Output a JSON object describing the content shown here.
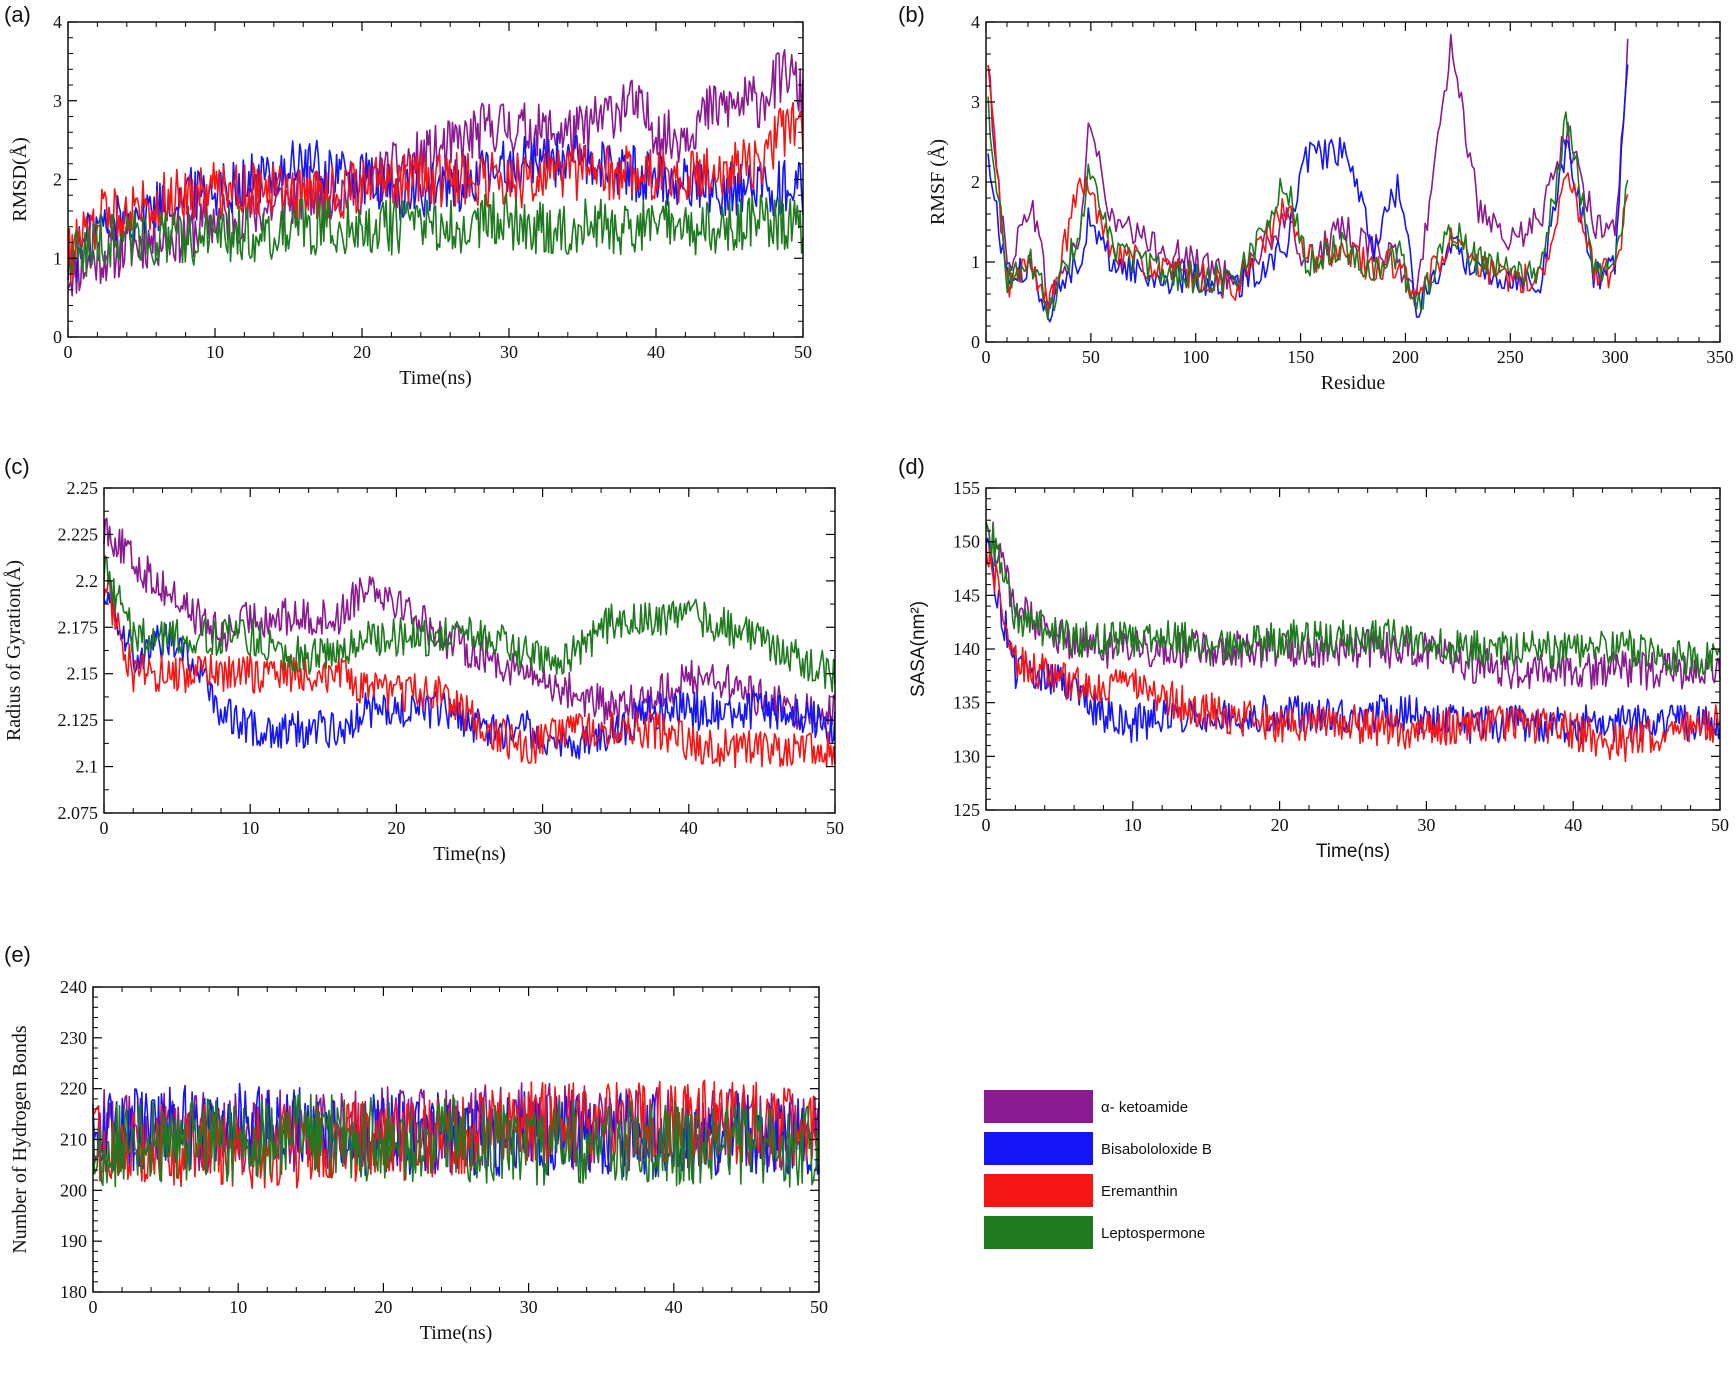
{
  "series_colors": {
    "alpha_ketoamide": "#8a1a8f",
    "bisabololoxide_b": "#1515f5",
    "eremanthin": "#f51515",
    "leptospermone": "#1f7a1f"
  },
  "legend": [
    {
      "name": "α- ketoamide",
      "color": "#8a1a8f"
    },
    {
      "name": "Bisabololoxide B",
      "color": "#1515f5"
    },
    {
      "name": "Eremanthin",
      "color": "#f51515"
    },
    {
      "name": "Leptospermone",
      "color": "#1f7a1f"
    }
  ],
  "chart_data": [
    {
      "panel": "(a)",
      "type": "line",
      "xlabel": "Time(ns)",
      "ylabel": "RMSD(Å)",
      "xlim": [
        0,
        50
      ],
      "ylim": [
        0,
        4
      ],
      "xticks": [
        0,
        10,
        20,
        30,
        40,
        50
      ],
      "yticks": [
        0,
        1,
        2,
        3,
        4
      ],
      "x": [
        0,
        2,
        5,
        8,
        10,
        13,
        16,
        20,
        23,
        26,
        29,
        32,
        35,
        38,
        41,
        44,
        47,
        49,
        50
      ],
      "series": [
        {
          "name": "α- ketoamide",
          "values": [
            0.8,
            1.0,
            1.2,
            1.3,
            1.5,
            1.6,
            1.8,
            1.9,
            2.2,
            2.4,
            2.7,
            2.6,
            2.6,
            3.0,
            2.5,
            2.9,
            3.0,
            3.4,
            3.0
          ]
        },
        {
          "name": "Bisabololoxide B",
          "values": [
            0.9,
            1.4,
            1.6,
            1.8,
            1.9,
            2.0,
            2.2,
            2.0,
            1.8,
            1.9,
            2.1,
            2.3,
            2.2,
            2.1,
            2.0,
            1.9,
            1.9,
            1.9,
            1.9
          ]
        },
        {
          "name": "Eremanthin",
          "values": [
            1.0,
            1.5,
            1.7,
            1.8,
            1.9,
            1.9,
            1.8,
            1.9,
            2.0,
            2.0,
            2.0,
            2.0,
            2.1,
            2.1,
            2.0,
            2.1,
            2.2,
            2.7,
            2.6
          ]
        },
        {
          "name": "Leptospermone",
          "values": [
            1.0,
            1.2,
            1.3,
            1.2,
            1.3,
            1.3,
            1.4,
            1.4,
            1.4,
            1.4,
            1.5,
            1.4,
            1.4,
            1.4,
            1.4,
            1.4,
            1.5,
            1.4,
            1.4
          ]
        }
      ]
    },
    {
      "panel": "(b)",
      "type": "line",
      "xlabel": "Residue",
      "ylabel": "RMSF (Å)",
      "xlim": [
        0,
        350
      ],
      "ylim": [
        0,
        4
      ],
      "xticks": [
        0,
        50,
        100,
        150,
        200,
        250,
        300,
        350
      ],
      "yticks": [
        0,
        1,
        2,
        3,
        4
      ],
      "x": [
        1,
        10,
        22,
        30,
        45,
        49,
        60,
        80,
        100,
        120,
        143,
        153,
        170,
        185,
        197,
        205,
        222,
        235,
        250,
        265,
        277,
        290,
        300,
        306
      ],
      "series": [
        {
          "name": "α- ketoamide",
          "values": [
            3.4,
            0.9,
            1.8,
            0.5,
            1.3,
            2.8,
            1.5,
            1.2,
            1.0,
            0.8,
            1.5,
            1.0,
            1.4,
            1.2,
            1.0,
            0.5,
            3.8,
            1.6,
            1.2,
            1.6,
            2.6,
            1.5,
            1.4,
            3.6
          ]
        },
        {
          "name": "Bisabololoxide B",
          "values": [
            2.3,
            0.8,
            0.9,
            0.4,
            1.1,
            1.5,
            1.0,
            0.8,
            0.8,
            0.7,
            1.2,
            2.3,
            2.4,
            1.2,
            2.0,
            0.4,
            1.2,
            0.9,
            0.8,
            0.8,
            2.5,
            0.8,
            1.0,
            3.6
          ]
        },
        {
          "name": "Eremanthin",
          "values": [
            3.4,
            0.7,
            1.0,
            0.4,
            2.0,
            1.9,
            1.2,
            0.9,
            0.8,
            0.7,
            1.7,
            1.0,
            1.2,
            0.9,
            1.0,
            0.5,
            1.3,
            0.9,
            0.8,
            0.8,
            2.2,
            0.9,
            0.8,
            1.9
          ]
        },
        {
          "name": "Leptospermone",
          "values": [
            3.0,
            0.8,
            1.0,
            0.4,
            1.4,
            2.1,
            1.2,
            0.9,
            0.8,
            0.8,
            2.0,
            1.0,
            1.2,
            0.9,
            1.1,
            0.4,
            1.4,
            1.0,
            0.9,
            0.9,
            2.8,
            1.0,
            0.9,
            2.0
          ]
        }
      ]
    },
    {
      "panel": "(c)",
      "type": "line",
      "xlabel": "Time(ns)",
      "ylabel": "Radius of Gyration(Å)",
      "xlim": [
        0,
        50
      ],
      "ylim": [
        2.075,
        2.25
      ],
      "xticks": [
        0,
        10,
        20,
        30,
        40,
        50
      ],
      "yticks": [
        2.075,
        2.1,
        2.125,
        2.15,
        2.175,
        2.2,
        2.225,
        2.25
      ],
      "x": [
        0,
        2,
        5,
        8,
        10,
        13,
        16,
        18,
        20,
        23,
        26,
        29,
        32,
        35,
        38,
        41,
        44,
        47,
        50
      ],
      "series": [
        {
          "name": "α- ketoamide",
          "values": [
            2.23,
            2.21,
            2.19,
            2.17,
            2.18,
            2.18,
            2.18,
            2.2,
            2.19,
            2.17,
            2.16,
            2.15,
            2.14,
            2.13,
            2.14,
            2.15,
            2.14,
            2.13,
            2.13
          ]
        },
        {
          "name": "Bisabololoxide B",
          "values": [
            2.2,
            2.16,
            2.17,
            2.13,
            2.12,
            2.12,
            2.12,
            2.13,
            2.13,
            2.13,
            2.12,
            2.12,
            2.11,
            2.12,
            2.13,
            2.13,
            2.13,
            2.13,
            2.12
          ]
        },
        {
          "name": "Eremanthin",
          "values": [
            2.2,
            2.15,
            2.15,
            2.15,
            2.15,
            2.15,
            2.15,
            2.14,
            2.14,
            2.14,
            2.12,
            2.11,
            2.12,
            2.12,
            2.12,
            2.11,
            2.11,
            2.11,
            2.11
          ]
        },
        {
          "name": "Leptospermone",
          "values": [
            2.21,
            2.17,
            2.17,
            2.17,
            2.17,
            2.16,
            2.16,
            2.17,
            2.17,
            2.17,
            2.17,
            2.16,
            2.16,
            2.18,
            2.18,
            2.18,
            2.17,
            2.16,
            2.15
          ]
        }
      ]
    },
    {
      "panel": "(d)",
      "type": "line",
      "xlabel": "Time(ns)",
      "ylabel": "SASA(nm²)",
      "xlim": [
        0,
        50
      ],
      "ylim": [
        125,
        155
      ],
      "xticks": [
        0,
        10,
        20,
        30,
        40,
        50
      ],
      "yticks": [
        125,
        130,
        135,
        140,
        145,
        150,
        155
      ],
      "x": [
        0,
        2,
        5,
        8,
        10,
        13,
        16,
        20,
        23,
        26,
        29,
        32,
        35,
        38,
        41,
        44,
        47,
        50
      ],
      "series": [
        {
          "name": "α- ketoamide",
          "values": [
            152,
            144,
            141,
            140,
            140,
            140,
            140,
            140,
            140,
            140,
            140,
            139,
            138,
            138,
            138,
            138,
            138,
            138
          ]
        },
        {
          "name": "Bisabololoxide B",
          "values": [
            150,
            138,
            137,
            134,
            133,
            134,
            134,
            134,
            134,
            134,
            134,
            133,
            133,
            133,
            133,
            133,
            133,
            133
          ]
        },
        {
          "name": "Eremanthin",
          "values": [
            150,
            139,
            137,
            136,
            137,
            135,
            134,
            133,
            133,
            133,
            132,
            133,
            133,
            133,
            132,
            131,
            133,
            133
          ]
        },
        {
          "name": "Leptospermone",
          "values": [
            152,
            143,
            141,
            141,
            141,
            141,
            140,
            141,
            141,
            141,
            141,
            140,
            140,
            140,
            140,
            140,
            139,
            139
          ]
        }
      ]
    },
    {
      "panel": "(e)",
      "type": "line",
      "xlabel": "Time(ns)",
      "ylabel": "Number of Hydrogen Bonds",
      "xlim": [
        0,
        50
      ],
      "ylim": [
        180,
        240
      ],
      "xticks": [
        0,
        10,
        20,
        30,
        40,
        50
      ],
      "yticks": [
        180,
        190,
        200,
        210,
        220,
        230,
        240
      ],
      "x": [
        0,
        5,
        10,
        15,
        20,
        25,
        30,
        35,
        40,
        45,
        50
      ],
      "series": [
        {
          "name": "α- ketoamide",
          "values": [
            212,
            212,
            211,
            212,
            212,
            212,
            213,
            212,
            212,
            212,
            212
          ]
        },
        {
          "name": "Bisabololoxide B",
          "values": [
            211,
            213,
            213,
            212,
            211,
            211,
            211,
            211,
            211,
            211,
            211
          ]
        },
        {
          "name": "Eremanthin",
          "values": [
            210,
            209,
            208,
            209,
            210,
            211,
            213,
            213,
            214,
            213,
            212
          ]
        },
        {
          "name": "Leptospermone",
          "values": [
            209,
            209,
            210,
            211,
            210,
            210,
            209,
            210,
            209,
            209,
            209
          ]
        }
      ]
    }
  ]
}
